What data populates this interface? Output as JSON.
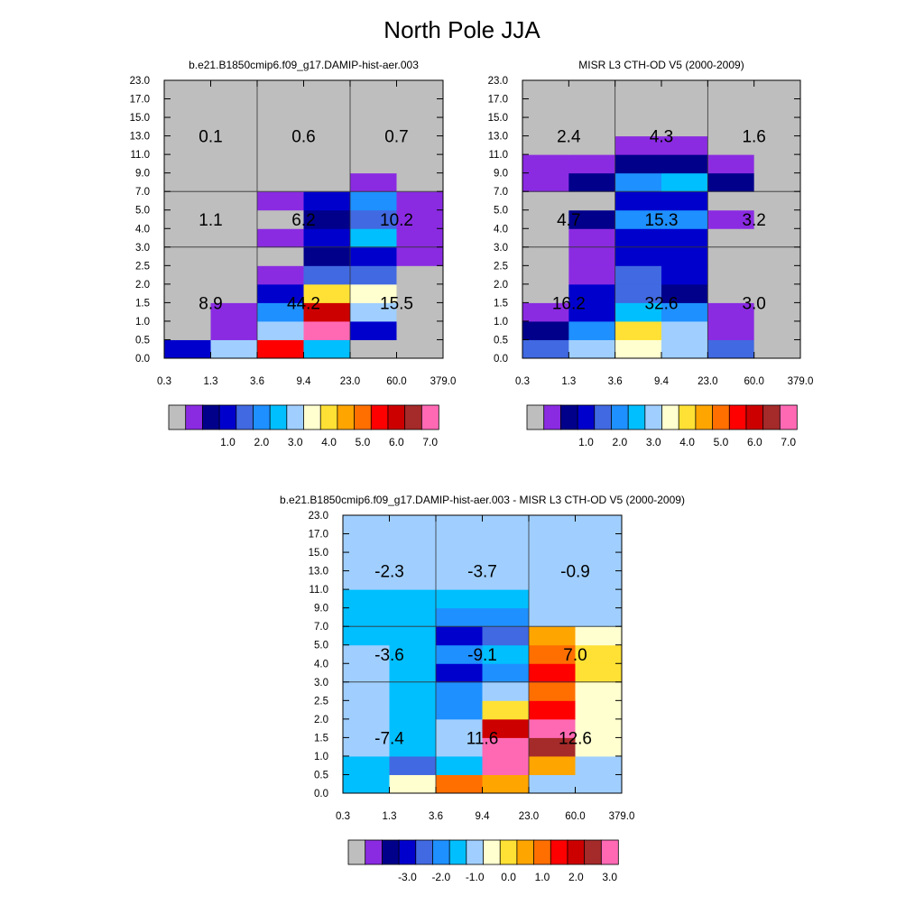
{
  "figure": {
    "title": "North Pole JJA"
  },
  "colors": {
    "palette": [
      "#bebebe",
      "#8a2be2",
      "#00008b",
      "#0000cd",
      "#4169e1",
      "#1e90ff",
      "#00bfff",
      "#a0cfff",
      "#ffffd0",
      "#ffe135",
      "#ffa500",
      "#ff6f00",
      "#ff0000",
      "#cd0000",
      "#a52a2a",
      "#ff69b4"
    ],
    "border": "#000000"
  },
  "chart_data": [
    {
      "type": "heatmap",
      "title": "b.e21.B1850cmip6.f09_g17.DAMIP-hist-aer.003",
      "x_tick_labels": [
        "0.3",
        "1.3",
        "3.6",
        "9.4",
        "23.0",
        "60.0",
        "379.0"
      ],
      "y_tick_labels": [
        "0.0",
        "0.5",
        "1.0",
        "1.5",
        "2.0",
        "2.5",
        "3.0",
        "4.0",
        "5.0",
        "7.0",
        "9.0",
        "11.0",
        "13.0",
        "15.0",
        "17.0",
        "23.0"
      ],
      "cell_color_index": [
        [
          3,
          7,
          12,
          6,
          0,
          0
        ],
        [
          0,
          1,
          7,
          15,
          3,
          0
        ],
        [
          0,
          1,
          5,
          13,
          7,
          0
        ],
        [
          0,
          0,
          3,
          9,
          8,
          0
        ],
        [
          0,
          0,
          1,
          4,
          4,
          0
        ],
        [
          0,
          0,
          0,
          2,
          3,
          1
        ],
        [
          0,
          0,
          1,
          3,
          6,
          1
        ],
        [
          0,
          0,
          0,
          2,
          4,
          1
        ],
        [
          0,
          0,
          1,
          3,
          5,
          1
        ],
        [
          0,
          0,
          0,
          0,
          1,
          0
        ],
        [
          0,
          0,
          0,
          0,
          0,
          0
        ],
        [
          0,
          0,
          0,
          0,
          0,
          0
        ],
        [
          0,
          0,
          0,
          0,
          0,
          0
        ],
        [
          0,
          0,
          0,
          0,
          0,
          0
        ],
        [
          0,
          0,
          0,
          0,
          0,
          0
        ]
      ],
      "block_values": [
        [
          "8.9",
          "44.2",
          "15.5"
        ],
        [
          "1.1",
          "6.2",
          "10.2"
        ],
        [
          "0.1",
          "0.6",
          "0.7"
        ]
      ],
      "colorbar_labels": [
        "1.0",
        "2.0",
        "3.0",
        "4.0",
        "5.0",
        "6.0",
        "7.0"
      ],
      "grid": true
    },
    {
      "type": "heatmap",
      "title": "MISR L3 CTH-OD V5 (2000-2009)",
      "x_tick_labels": [
        "0.3",
        "1.3",
        "3.6",
        "9.4",
        "23.0",
        "60.0",
        "379.0"
      ],
      "y_tick_labels": [
        "0.0",
        "0.5",
        "1.0",
        "1.5",
        "2.0",
        "2.5",
        "3.0",
        "4.0",
        "5.0",
        "7.0",
        "9.0",
        "11.0",
        "13.0",
        "15.0",
        "17.0",
        "23.0"
      ],
      "cell_color_index": [
        [
          4,
          7,
          8,
          7,
          4,
          0
        ],
        [
          2,
          5,
          9,
          7,
          1,
          0
        ],
        [
          1,
          3,
          6,
          5,
          1,
          0
        ],
        [
          0,
          3,
          4,
          2,
          0,
          0
        ],
        [
          0,
          1,
          4,
          3,
          0,
          0
        ],
        [
          0,
          1,
          3,
          3,
          0,
          0
        ],
        [
          0,
          1,
          3,
          3,
          0,
          0
        ],
        [
          0,
          2,
          5,
          5,
          1,
          0
        ],
        [
          0,
          0,
          3,
          3,
          0,
          0
        ],
        [
          1,
          2,
          5,
          6,
          2,
          0
        ],
        [
          1,
          1,
          2,
          2,
          1,
          0
        ],
        [
          0,
          0,
          1,
          1,
          0,
          0
        ],
        [
          0,
          0,
          0,
          0,
          0,
          0
        ],
        [
          0,
          0,
          0,
          0,
          0,
          0
        ],
        [
          0,
          0,
          0,
          0,
          0,
          0
        ]
      ],
      "block_values": [
        [
          "16.2",
          "32.6",
          "3.0"
        ],
        [
          "4.7",
          "15.3",
          "3.2"
        ],
        [
          "2.4",
          "4.3",
          "1.6"
        ]
      ],
      "colorbar_labels": [
        "1.0",
        "2.0",
        "3.0",
        "4.0",
        "5.0",
        "6.0",
        "7.0"
      ],
      "grid": true
    },
    {
      "type": "heatmap",
      "title": "b.e21.B1850cmip6.f09_g17.DAMIP-hist-aer.003 - MISR L3 CTH-OD V5 (2000-2009)",
      "x_tick_labels": [
        "0.3",
        "1.3",
        "3.6",
        "9.4",
        "23.0",
        "60.0",
        "379.0"
      ],
      "y_tick_labels": [
        "0.0",
        "0.5",
        "1.0",
        "1.5",
        "2.0",
        "2.5",
        "3.0",
        "4.0",
        "5.0",
        "7.0",
        "9.0",
        "11.0",
        "13.0",
        "15.0",
        "17.0",
        "23.0"
      ],
      "cell_color_index": [
        [
          6,
          8,
          11,
          10,
          7,
          7
        ],
        [
          6,
          4,
          6,
          15,
          10,
          7
        ],
        [
          7,
          6,
          7,
          15,
          14,
          8
        ],
        [
          7,
          6,
          7,
          13,
          15,
          8
        ],
        [
          7,
          6,
          5,
          9,
          12,
          8
        ],
        [
          7,
          6,
          5,
          7,
          11,
          8
        ],
        [
          7,
          6,
          3,
          5,
          12,
          9
        ],
        [
          7,
          6,
          5,
          6,
          11,
          9
        ],
        [
          6,
          6,
          3,
          4,
          10,
          8
        ],
        [
          6,
          6,
          5,
          5,
          7,
          7
        ],
        [
          6,
          6,
          6,
          6,
          7,
          7
        ],
        [
          7,
          7,
          7,
          7,
          7,
          7
        ],
        [
          7,
          7,
          7,
          7,
          7,
          7
        ],
        [
          7,
          7,
          7,
          7,
          7,
          7
        ],
        [
          7,
          7,
          7,
          7,
          7,
          7
        ]
      ],
      "block_values": [
        [
          "-7.4",
          "11.6",
          "12.6"
        ],
        [
          "-3.6",
          "-9.1",
          "7.0"
        ],
        [
          "-2.3",
          "-3.7",
          "-0.9"
        ]
      ],
      "colorbar_labels": [
        "-3.0",
        "-2.0",
        "-1.0",
        "0.0",
        "1.0",
        "2.0",
        "3.0"
      ],
      "grid": true
    }
  ]
}
